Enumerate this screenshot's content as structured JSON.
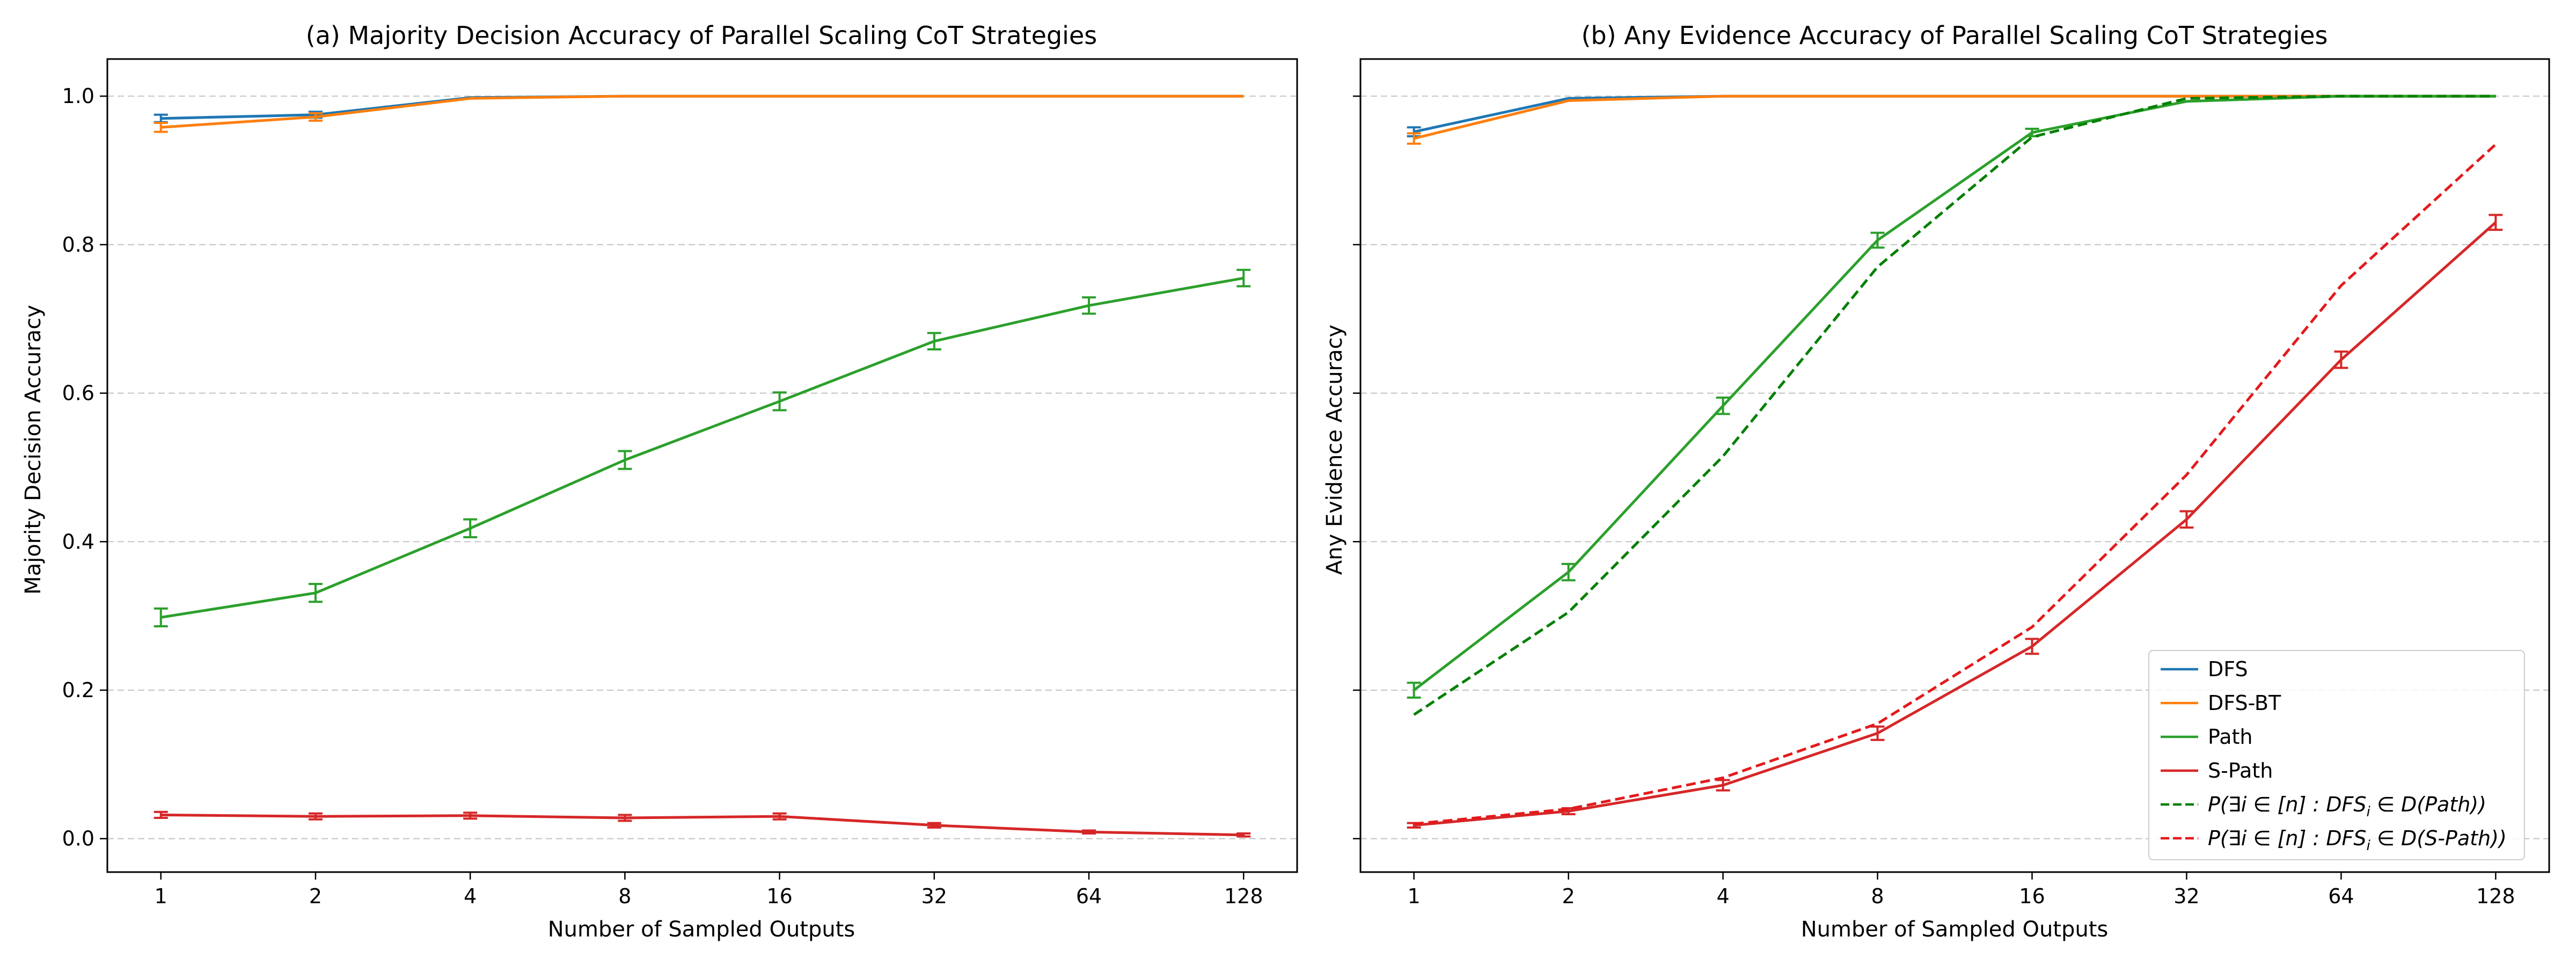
{
  "chart_data": [
    {
      "type": "line",
      "title": "(a) Majority Decision Accuracy of Parallel Scaling CoT Strategies",
      "xlabel": "Number of Sampled Outputs",
      "ylabel": "Majority Decision Accuracy",
      "x": [
        1,
        2,
        4,
        8,
        16,
        32,
        64,
        128
      ],
      "x_scale": "log2",
      "ylim": [
        -0.045,
        1.05
      ],
      "yticks": [
        "0.0",
        "0.2",
        "0.4",
        "0.6",
        "0.8",
        "1.0"
      ],
      "grid": "y-dashed",
      "series": [
        {
          "name": "DFS",
          "color": "#1f77b4",
          "dash": false,
          "values": [
            0.97,
            0.975,
            0.998,
            1.0,
            1.0,
            1.0,
            1.0,
            1.0
          ],
          "errors": [
            0.005,
            0.004,
            0.0,
            0.0,
            0.0,
            0.0,
            0.0,
            0.0
          ]
        },
        {
          "name": "DFS-BT",
          "color": "#ff7f0e",
          "dash": false,
          "values": [
            0.958,
            0.972,
            0.997,
            1.0,
            1.0,
            1.0,
            1.0,
            1.0
          ],
          "errors": [
            0.006,
            0.005,
            0.0,
            0.0,
            0.0,
            0.0,
            0.0,
            0.0
          ]
        },
        {
          "name": "Path",
          "color": "#2ca02c",
          "dash": false,
          "values": [
            0.298,
            0.331,
            0.418,
            0.51,
            0.589,
            0.67,
            0.718,
            0.755
          ],
          "errors": [
            0.012,
            0.012,
            0.012,
            0.012,
            0.012,
            0.011,
            0.011,
            0.011
          ]
        },
        {
          "name": "S-Path",
          "color": "#d62728",
          "dash": false,
          "values": [
            0.032,
            0.03,
            0.031,
            0.028,
            0.03,
            0.018,
            0.009,
            0.005
          ],
          "errors": [
            0.004,
            0.004,
            0.004,
            0.004,
            0.004,
            0.003,
            0.002,
            0.002
          ]
        }
      ]
    },
    {
      "type": "line",
      "title": "(b) Any Evidence Accuracy of Parallel Scaling CoT Strategies",
      "xlabel": "Number of Sampled Outputs",
      "ylabel": "Any Evidence Accuracy",
      "x": [
        1,
        2,
        4,
        8,
        16,
        32,
        64,
        128
      ],
      "x_scale": "log2",
      "ylim": [
        -0.045,
        1.05
      ],
      "yticks": [
        "",
        "",
        "",
        "",
        "",
        ""
      ],
      "grid": "y-dashed",
      "legend": "lower-right",
      "series": [
        {
          "name": "DFS",
          "color": "#1f77b4",
          "dash": false,
          "values": [
            0.952,
            0.997,
            1.0,
            1.0,
            1.0,
            1.0,
            1.0,
            1.0
          ],
          "errors": [
            0.006,
            0.0,
            0.0,
            0.0,
            0.0,
            0.0,
            0.0,
            0.0
          ]
        },
        {
          "name": "DFS-BT",
          "color": "#ff7f0e",
          "dash": false,
          "values": [
            0.943,
            0.994,
            1.0,
            1.0,
            1.0,
            1.0,
            1.0,
            1.0
          ],
          "errors": [
            0.007,
            0.0,
            0.0,
            0.0,
            0.0,
            0.0,
            0.0,
            0.0
          ]
        },
        {
          "name": "Path",
          "color": "#2ca02c",
          "dash": false,
          "values": [
            0.2,
            0.359,
            0.583,
            0.806,
            0.951,
            0.993,
            1.0,
            1.0
          ],
          "errors": [
            0.01,
            0.011,
            0.011,
            0.01,
            0.005,
            0.0,
            0.0,
            0.0
          ]
        },
        {
          "name": "S-Path",
          "color": "#d62728",
          "dash": false,
          "values": [
            0.018,
            0.037,
            0.072,
            0.142,
            0.259,
            0.43,
            0.645,
            0.83
          ],
          "errors": [
            0.003,
            0.004,
            0.007,
            0.009,
            0.01,
            0.011,
            0.011,
            0.01
          ]
        },
        {
          "name": "P(∃i ∈ [n] : DFS_i ∈ D(Path))",
          "color": "#008000",
          "dash": true,
          "values": [
            0.167,
            0.305,
            0.515,
            0.77,
            0.945,
            0.997,
            1.0,
            1.0
          ],
          "errors": []
        },
        {
          "name": "P(∃i ∈ [n] : DFS_i ∈ D(S-Path))",
          "color": "#e31a1c",
          "dash": true,
          "values": [
            0.02,
            0.04,
            0.082,
            0.155,
            0.285,
            0.49,
            0.745,
            0.935
          ],
          "errors": []
        }
      ]
    }
  ],
  "x_tick_labels": [
    "1",
    "2",
    "4",
    "8",
    "16",
    "32",
    "64",
    "128"
  ],
  "legend_entries": [
    {
      "text": "DFS",
      "color": "#1f77b4",
      "dash": false
    },
    {
      "text": "DFS-BT",
      "color": "#ff7f0e",
      "dash": false
    },
    {
      "text": "Path",
      "color": "#2ca02c",
      "dash": false
    },
    {
      "text": "S-Path",
      "color": "#d62728",
      "dash": false
    },
    {
      "prefix": "P(∃i ∈ [n] : DFS",
      "sub": "i",
      "suffix": " ∈ D(Path))",
      "color": "#008000",
      "dash": true
    },
    {
      "prefix": "P(∃i ∈ [n] : DFS",
      "sub": "i",
      "suffix": " ∈ D(S-Path))",
      "color": "#e31a1c",
      "dash": true
    }
  ]
}
